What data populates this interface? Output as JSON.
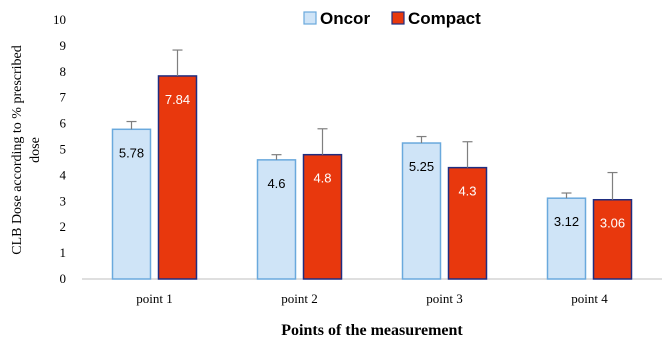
{
  "chart_data": {
    "type": "bar",
    "title": "",
    "xlabel": "Points of the measurement",
    "ylabel_lines": [
      "CLB Dose according to % prescribed",
      "dose"
    ],
    "ylim": [
      0,
      10
    ],
    "yticks": [
      "0",
      "1",
      "2",
      "3",
      "4",
      "5",
      "6",
      "7",
      "8",
      "9",
      "10"
    ],
    "categories": [
      "point 1",
      "point 2",
      "point 3",
      "point 4"
    ],
    "legend_position": "top",
    "series": [
      {
        "name": "Oncor",
        "values": [
          5.78,
          4.6,
          5.25,
          3.12
        ],
        "errors": [
          0.3,
          0.2,
          0.25,
          0.2
        ],
        "labels": [
          "5.78",
          "4.6",
          "5.25",
          "3.12"
        ],
        "color": "#cfe4f7",
        "edge": "#6aa9dd",
        "label_color": "#000000"
      },
      {
        "name": "Compact",
        "values": [
          7.84,
          4.8,
          4.3,
          3.06
        ],
        "errors": [
          1.0,
          1.0,
          1.0,
          1.05
        ],
        "labels": [
          "7.84",
          "4.8",
          "4.3",
          "3.06"
        ],
        "color": "#e8380d",
        "edge": "#1f2d80",
        "label_color": "#ffffff"
      }
    ],
    "colors": {
      "axis": "#bfbfbf",
      "errorbar": "#7f7f7f"
    }
  }
}
